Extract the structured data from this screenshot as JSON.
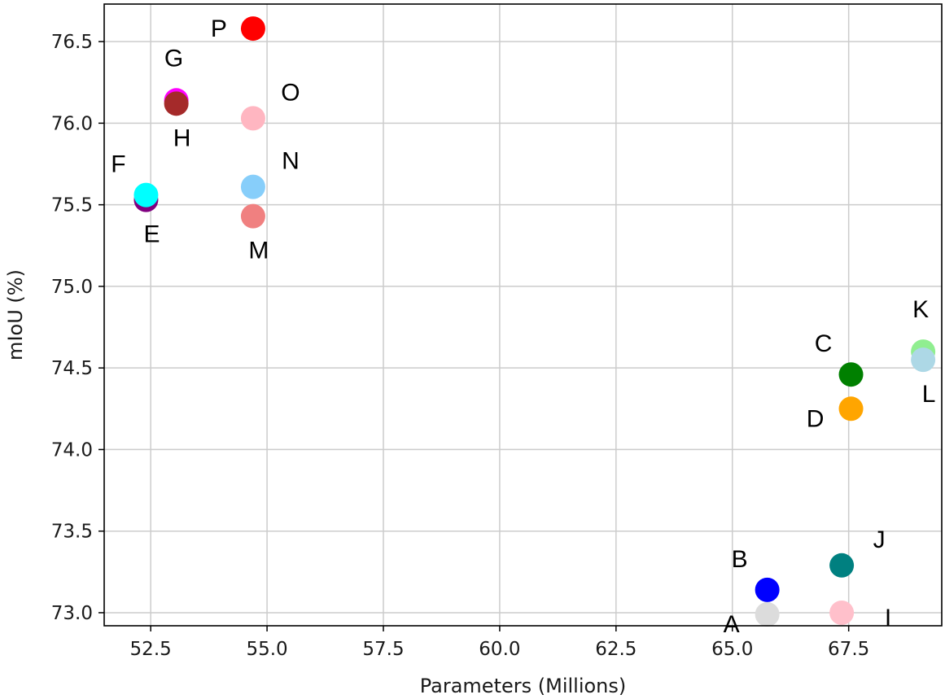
{
  "chart_data": {
    "type": "scatter",
    "xlabel": "Parameters (Millions)",
    "ylabel": "mIoU (%)",
    "xlim": [
      51.5,
      69.5
    ],
    "ylim": [
      72.92,
      76.73
    ],
    "grid": true,
    "xticks": [
      52.5,
      55.0,
      57.5,
      60.0,
      62.5,
      65.0,
      67.5
    ],
    "xtick_labels": [
      "52.5",
      "55.0",
      "57.5",
      "60.0",
      "62.5",
      "65.0",
      "67.5"
    ],
    "yticks": [
      73.0,
      73.5,
      74.0,
      74.5,
      75.0,
      75.5,
      76.0,
      76.5
    ],
    "ytick_labels": [
      "73.0",
      "73.5",
      "74.0",
      "74.5",
      "75.0",
      "75.5",
      "76.0",
      "76.5"
    ],
    "points": [
      {
        "label": "A",
        "x": 65.75,
        "y": 72.99,
        "color": "#dcdcdc",
        "label_pos": "below-left"
      },
      {
        "label": "B",
        "x": 65.75,
        "y": 73.14,
        "color": "#0000ff",
        "label_pos": "upper-left"
      },
      {
        "label": "C",
        "x": 67.55,
        "y": 74.46,
        "color": "#008000",
        "label_pos": "upper-left"
      },
      {
        "label": "D",
        "x": 67.55,
        "y": 74.25,
        "color": "#ffa500",
        "label_pos": "below-left"
      },
      {
        "label": "E",
        "x": 52.4,
        "y": 75.53,
        "color": "#800080",
        "label_pos": "below"
      },
      {
        "label": "F",
        "x": 52.4,
        "y": 75.56,
        "color": "#00ffff",
        "label_pos": "upper-left"
      },
      {
        "label": "G",
        "x": 53.05,
        "y": 76.14,
        "color": "#ff00ff",
        "label_pos": "above"
      },
      {
        "label": "H",
        "x": 53.05,
        "y": 76.12,
        "color": "#a52a2a",
        "label_pos": "below"
      },
      {
        "label": "I",
        "x": 67.35,
        "y": 73.0,
        "color": "#ffc0cb",
        "label_pos": "right"
      },
      {
        "label": "J",
        "x": 67.35,
        "y": 73.29,
        "color": "#008080",
        "label_pos": "upper-right"
      },
      {
        "label": "K",
        "x": 69.1,
        "y": 74.6,
        "color": "#90ee90",
        "label_pos": "above"
      },
      {
        "label": "L",
        "x": 69.1,
        "y": 74.55,
        "color": "#add8e6",
        "label_pos": "below"
      },
      {
        "label": "M",
        "x": 54.7,
        "y": 75.43,
        "color": "#f08080",
        "label_pos": "below"
      },
      {
        "label": "N",
        "x": 54.7,
        "y": 75.61,
        "color": "#87cefa",
        "label_pos": "upper-right"
      },
      {
        "label": "O",
        "x": 54.7,
        "y": 76.03,
        "color": "#ffb6c1",
        "label_pos": "upper-right"
      },
      {
        "label": "P",
        "x": 54.7,
        "y": 76.58,
        "color": "#ff0000",
        "label_pos": "left"
      }
    ]
  }
}
